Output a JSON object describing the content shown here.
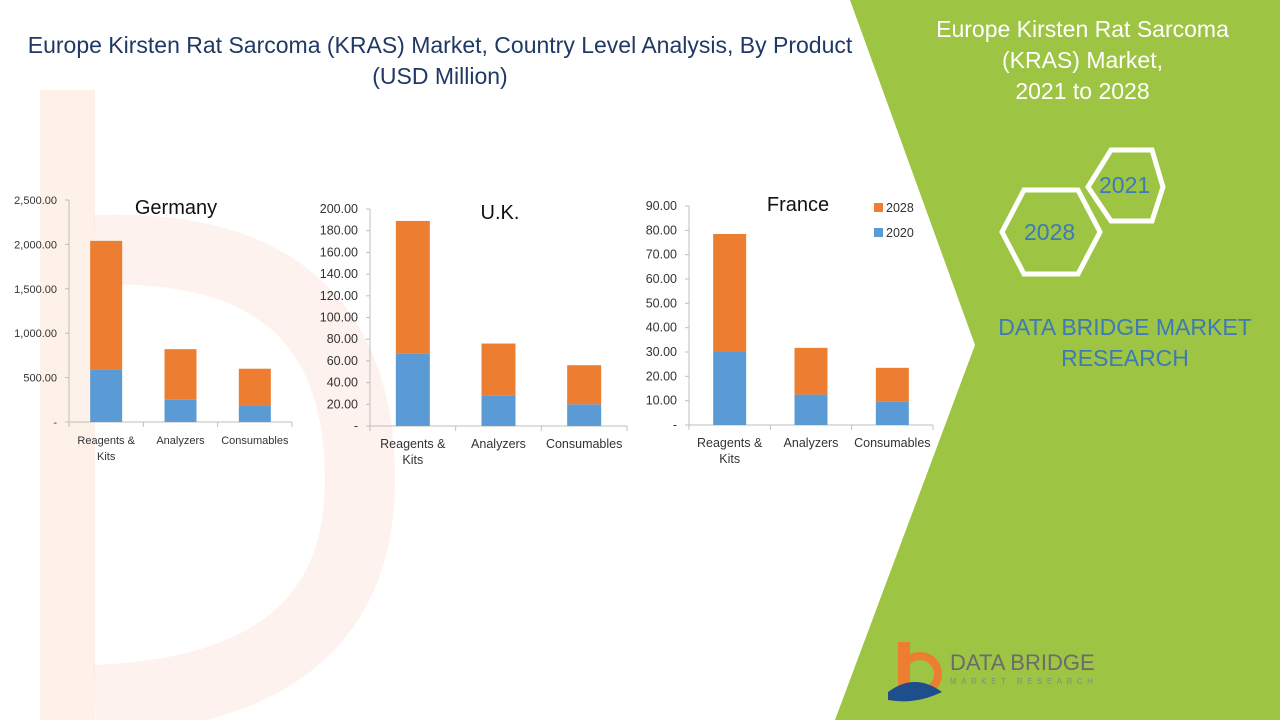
{
  "title": "Europe Kirsten Rat Sarcoma (KRAS) Market, Country Level Analysis, By Product (USD Million)",
  "side_panel": {
    "title_lines": [
      "Europe Kirsten Rat Sarcoma",
      "(KRAS) Market,",
      "2021 to 2028"
    ],
    "hex_years": [
      "2021",
      "2028"
    ],
    "brand_lines": [
      "DATA BRIDGE MARKET",
      "RESEARCH"
    ]
  },
  "logo": {
    "name": "DATA BRIDGE",
    "tagline": "MARKET RESEARCH"
  },
  "colors": {
    "s2020": "#5b9bd5",
    "s2028": "#ed7d31",
    "panel": "#9dc443"
  },
  "chart_data": [
    {
      "type": "bar",
      "stacked": true,
      "title": "Germany",
      "categories": [
        [
          "Reagents &",
          "Kits"
        ],
        [
          "Analyzers"
        ],
        [
          "Consumables"
        ]
      ],
      "series": [
        {
          "name": "2020",
          "values": [
            590,
            250,
            190
          ]
        },
        {
          "name": "2028",
          "values": [
            1450,
            570,
            410
          ]
        }
      ],
      "ylim": [
        0,
        2500
      ],
      "yticks": [
        "-",
        "500.00",
        "1,000.00",
        "1,500.00",
        "2,000.00",
        "2,500.00"
      ],
      "legend": "none"
    },
    {
      "type": "bar",
      "stacked": true,
      "title": "U.K.",
      "categories": [
        [
          "Reagents &",
          "Kits"
        ],
        [
          "Analyzers"
        ],
        [
          "Consumables"
        ]
      ],
      "series": [
        {
          "name": "2020",
          "values": [
            67,
            28,
            20
          ]
        },
        {
          "name": "2028",
          "values": [
            122,
            48,
            36
          ]
        }
      ],
      "ylim": [
        0,
        200
      ],
      "yticks": [
        "-",
        "20.00",
        "40.00",
        "60.00",
        "80.00",
        "100.00",
        "120.00",
        "140.00",
        "160.00",
        "180.00",
        "200.00"
      ],
      "legend": "none"
    },
    {
      "type": "bar",
      "stacked": true,
      "title": "France",
      "categories": [
        [
          "Reagents &",
          "Kits"
        ],
        [
          "Analyzers"
        ],
        [
          "Consumables"
        ]
      ],
      "series": [
        {
          "name": "2020",
          "values": [
            30,
            12.5,
            9.5
          ]
        },
        {
          "name": "2028",
          "values": [
            48.5,
            19.2,
            14
          ]
        }
      ],
      "ylim": [
        0,
        90
      ],
      "yticks": [
        "-",
        "10.00",
        "20.00",
        "30.00",
        "40.00",
        "50.00",
        "60.00",
        "70.00",
        "80.00",
        "90.00"
      ],
      "legend": "top-right",
      "legend_entries": [
        "2028",
        "2020"
      ]
    }
  ]
}
